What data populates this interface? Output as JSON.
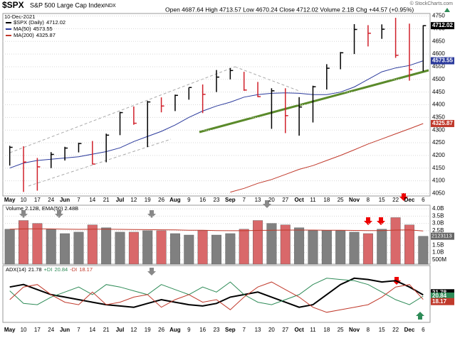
{
  "chart_data": [
    {
      "type": "ohlc",
      "title": "$SPX",
      "subtitle": "S&P 500 Large Cap Index",
      "exchange": "INDX",
      "source": "© StockCharts.com",
      "date": "10-Dec-2021",
      "quote": "Open 4687.64 High 4713.57 Low 4670.24 Close 4712.02 Volume 2.1B Chg +44.57 (+0.95%)",
      "close_name": "$SPX (Daily)",
      "categories": [
        "May",
        "10",
        "17",
        "24",
        "Jun",
        "7",
        "14",
        "21",
        "Jul",
        "12",
        "19",
        "26",
        "Aug",
        "9",
        "16",
        "23",
        "Sep",
        "7",
        "13",
        "20",
        "27",
        "Oct",
        "11",
        "18",
        "25",
        "Nov",
        "8",
        "15",
        "22",
        "Dec",
        "6"
      ],
      "high": [
        4238,
        4236,
        4190,
        4213,
        4234,
        4250,
        4257,
        4286,
        4372,
        4393,
        4415,
        4429,
        4440,
        4468,
        4480,
        4537,
        4545,
        4530,
        4490,
        4465,
        4465,
        4430,
        4475,
        4560,
        4608,
        4718,
        4714,
        4717,
        4743,
        4720,
        4713.57
      ],
      "low": [
        4160,
        4056,
        4061,
        4150,
        4180,
        4212,
        4165,
        4173,
        4280,
        4321,
        4233,
        4370,
        4375,
        4420,
        4367,
        4450,
        4500,
        4455,
        4430,
        4305,
        4288,
        4278,
        4330,
        4460,
        4540,
        4600,
        4630,
        4660,
        4585,
        4495,
        4532
      ],
      "close": [
        4232,
        4174,
        4155,
        4204,
        4229,
        4247,
        4166,
        4280,
        4369,
        4327,
        4411,
        4395,
        4437,
        4468,
        4441,
        4509,
        4535,
        4458,
        4432,
        4455,
        4357,
        4391,
        4471,
        4544,
        4605,
        4697,
        4682,
        4698,
        4595,
        4538,
        4712.02
      ],
      "close_color": "#000000",
      "down_color": "#d0202a",
      "series": [
        {
          "name": "MA(50)",
          "color": "#2b3a9c",
          "values": [
            4150,
            4170,
            4180,
            4185,
            4190,
            4195,
            4205,
            4215,
            4230,
            4255,
            4275,
            4295,
            4320,
            4350,
            4375,
            4395,
            4410,
            4430,
            4440,
            4445,
            4447,
            4445,
            4440,
            4440,
            4450,
            4470,
            4500,
            4530,
            4545,
            4555,
            4573.55
          ]
        },
        {
          "name": "MA(200)",
          "color": "#c0392b",
          "values": [
            null,
            null,
            null,
            null,
            null,
            null,
            null,
            null,
            null,
            null,
            null,
            null,
            null,
            null,
            null,
            null,
            4055,
            4070,
            4090,
            4105,
            4125,
            4145,
            4160,
            4180,
            4200,
            4222,
            4245,
            4265,
            4285,
            4305,
            4325.87
          ]
        }
      ],
      "ylim": [
        4040,
        4760
      ],
      "yticks": [
        4050,
        4100,
        4150,
        4200,
        4250,
        4300,
        4350,
        4400,
        4450,
        4500,
        4550,
        4600,
        4650,
        4700,
        4750
      ],
      "grid": true
    },
    {
      "type": "bar",
      "legend": "Volume 2.12B, EMA(50) 2.48B",
      "last_label": "2123113",
      "values": [
        2.6,
        3.2,
        3.0,
        2.6,
        2.3,
        2.4,
        2.9,
        2.7,
        2.4,
        2.4,
        2.5,
        2.5,
        2.3,
        2.2,
        2.5,
        2.2,
        2.3,
        2.6,
        3.2,
        3.0,
        2.9,
        2.7,
        2.5,
        2.5,
        2.5,
        2.4,
        2.3,
        2.6,
        3.4,
        2.9,
        2.12
      ],
      "up_color": "#808080",
      "down_color": "#d9686a",
      "ema": {
        "color": "#c0392b",
        "values": [
          2.6,
          2.62,
          2.63,
          2.62,
          2.6,
          2.59,
          2.6,
          2.6,
          2.59,
          2.58,
          2.57,
          2.56,
          2.55,
          2.53,
          2.53,
          2.51,
          2.5,
          2.5,
          2.52,
          2.53,
          2.54,
          2.54,
          2.54,
          2.53,
          2.53,
          2.52,
          2.51,
          2.51,
          2.54,
          2.55,
          2.48
        ]
      },
      "ylim": [
        0.2,
        4.25
      ],
      "yticks": [
        {
          "value": 0.5,
          "label": "500M"
        },
        {
          "value": 1,
          "label": "1.0B"
        },
        {
          "value": 1.5,
          "label": "1.5B"
        },
        {
          "value": 2,
          "label": "2.0B"
        },
        {
          "value": 2.5,
          "label": "2.5B"
        },
        {
          "value": 3,
          "label": "3.0B"
        },
        {
          "value": 3.5,
          "label": "3.5B"
        },
        {
          "value": 4,
          "label": "4.0B"
        }
      ]
    },
    {
      "type": "line",
      "series": [
        {
          "name": "ADX(14)",
          "color": "#000000",
          "values": [
            28,
            30,
            26,
            22,
            20,
            18,
            16,
            14,
            13,
            12,
            15,
            18,
            16,
            14,
            13,
            15,
            20,
            22,
            24,
            20,
            16,
            12,
            14,
            22,
            30,
            35,
            34,
            32,
            33,
            28,
            21.78
          ]
        },
        {
          "name": "+DI",
          "color": "#2e8b57",
          "values": [
            25,
            15,
            14,
            20,
            24,
            28,
            22,
            30,
            28,
            25,
            22,
            30,
            26,
            22,
            28,
            24,
            32,
            22,
            16,
            14,
            18,
            22,
            30,
            35,
            34,
            33,
            30,
            24,
            18,
            14,
            20.84
          ]
        },
        {
          "name": "-DI",
          "color": "#c0392b",
          "values": [
            18,
            28,
            30,
            22,
            16,
            14,
            24,
            14,
            16,
            20,
            22,
            12,
            18,
            22,
            16,
            18,
            10,
            20,
            28,
            32,
            26,
            20,
            12,
            8,
            10,
            12,
            14,
            20,
            28,
            30,
            18.17
          ]
        }
      ],
      "ylim": [
        0,
        45
      ]
    }
  ]
}
